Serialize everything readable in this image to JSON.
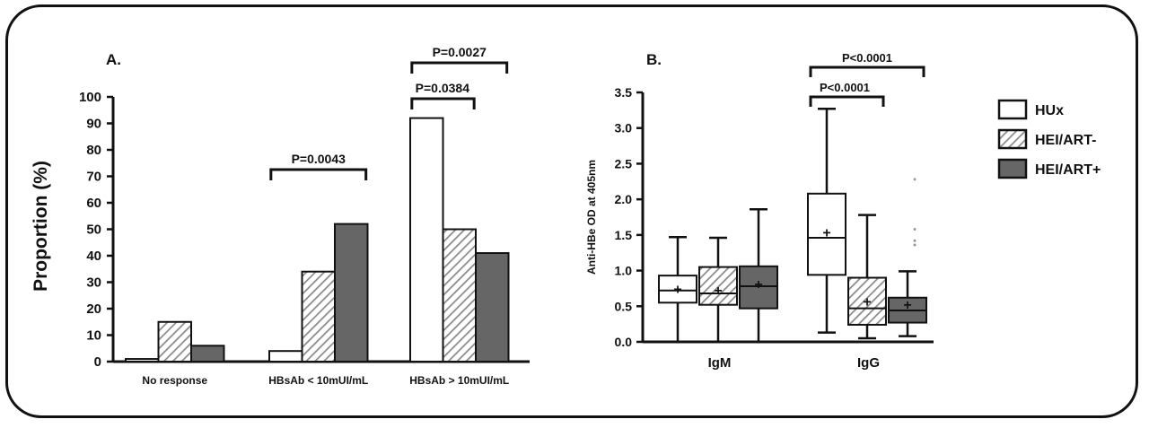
{
  "legend": [
    {
      "name": "HUx",
      "pattern": "white"
    },
    {
      "name": "HEI/ART-",
      "pattern": "hatch"
    },
    {
      "name": "HEI/ART+",
      "pattern": "gray"
    }
  ],
  "colors": {
    "frame": "#111111",
    "gray_fill": "#666666",
    "white_fill": "#ffffff",
    "hatch_stroke": "#888888"
  },
  "chart_data": [
    {
      "type": "bar",
      "panel_label": "A.",
      "ylabel": "Proportion (%)",
      "xlabel": "",
      "ylim": [
        0,
        100
      ],
      "yticks": [
        0,
        10,
        20,
        30,
        40,
        50,
        60,
        70,
        80,
        90,
        100
      ],
      "categories": [
        "No response",
        "HBsAb < 10mUI/mL",
        "HBsAb > 10mUI/mL"
      ],
      "series": [
        {
          "name": "HUx",
          "values": [
            1,
            4,
            92
          ]
        },
        {
          "name": "HEI/ART-",
          "values": [
            15,
            34,
            50
          ]
        },
        {
          "name": "HEI/ART+",
          "values": [
            6,
            52,
            41
          ]
        }
      ],
      "annotations": [
        {
          "text": "P=0.0043",
          "category": 1,
          "from_series": 0,
          "to_series": 2,
          "level": 0
        },
        {
          "text": "P=0.0384",
          "category": 2,
          "from_series": 0,
          "to_series": 1,
          "level": 0
        },
        {
          "text": "P=0.0027",
          "category": 2,
          "from_series": 0,
          "to_series": 2,
          "level": 1
        }
      ]
    },
    {
      "type": "box",
      "panel_label": "B.",
      "ylabel": "Anti-HBe OD at 405nm",
      "xlabel": "",
      "ylim": [
        0,
        3.5
      ],
      "yticks": [
        "0.0",
        "0.5",
        "1.0",
        "1.5",
        "2.0",
        "2.5",
        "3.0",
        "3.5"
      ],
      "categories": [
        "IgM",
        "IgG"
      ],
      "series": [
        {
          "name": "HUx",
          "boxes": [
            {
              "min": 0.0,
              "q1": 0.55,
              "median": 0.72,
              "q3": 0.93,
              "max": 1.47,
              "mean": 0.75
            },
            {
              "min": 0.13,
              "q1": 0.94,
              "median": 1.46,
              "q3": 2.08,
              "max": 3.27,
              "mean": 1.54
            }
          ]
        },
        {
          "name": "HEI/ART-",
          "boxes": [
            {
              "min": 0.0,
              "q1": 0.52,
              "median": 0.68,
              "q3": 1.05,
              "max": 1.46,
              "mean": 0.73
            },
            {
              "min": 0.05,
              "q1": 0.24,
              "median": 0.47,
              "q3": 0.9,
              "max": 1.78,
              "mean": 0.57
            }
          ]
        },
        {
          "name": "HEI/ART+",
          "boxes": [
            {
              "min": 0.0,
              "q1": 0.47,
              "median": 0.78,
              "q3": 1.06,
              "max": 1.86,
              "mean": 0.82
            },
            {
              "min": 0.08,
              "q1": 0.27,
              "median": 0.44,
              "q3": 0.62,
              "max": 0.99,
              "mean": 0.53,
              "outliers": [
                2.28,
                1.58,
                1.42,
                1.36
              ]
            }
          ]
        }
      ],
      "annotations": [
        {
          "text": "P<0.0001",
          "category": 1,
          "from_series": 0,
          "to_series": 1,
          "level": 0
        },
        {
          "text": "P<0.0001",
          "category": 1,
          "from_series": 0,
          "to_series": 2,
          "level": 1
        }
      ]
    }
  ]
}
